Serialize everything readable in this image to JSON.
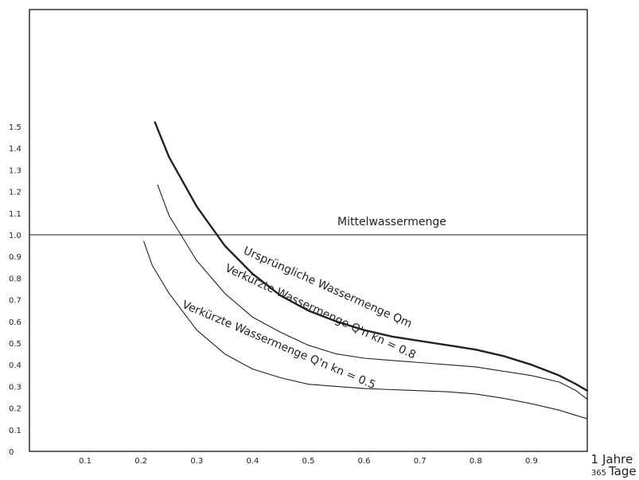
{
  "chart_data": {
    "type": "line",
    "xlabel": "Jahre",
    "xlabel_secondary": "Tage",
    "x_end_tick_jahre": "1",
    "x_end_tick_tage": "365",
    "ylabel": "",
    "xlim": [
      0,
      1.0
    ],
    "ylim": [
      0,
      1.5
    ],
    "grid": false,
    "x_ticks": [
      {
        "value": 0.1,
        "label": "0.1"
      },
      {
        "value": 0.2,
        "label": "0.2"
      },
      {
        "value": 0.3,
        "label": "0.3"
      },
      {
        "value": 0.4,
        "label": "0.4"
      },
      {
        "value": 0.5,
        "label": "0.5"
      },
      {
        "value": 0.6,
        "label": "0.6"
      },
      {
        "value": 0.7,
        "label": "0.7"
      },
      {
        "value": 0.8,
        "label": "0.8"
      },
      {
        "value": 0.9,
        "label": "0.9"
      }
    ],
    "y_ticks": [
      {
        "value": 0,
        "label": "0"
      },
      {
        "value": 0.1,
        "label": "0.1"
      },
      {
        "value": 0.2,
        "label": "0.2"
      },
      {
        "value": 0.3,
        "label": "0.3"
      },
      {
        "value": 0.4,
        "label": "0.4"
      },
      {
        "value": 0.5,
        "label": "0.5"
      },
      {
        "value": 0.6,
        "label": "0.6"
      },
      {
        "value": 0.7,
        "label": "0.7"
      },
      {
        "value": 0.8,
        "label": "0.8"
      },
      {
        "value": 0.9,
        "label": "0.9"
      },
      {
        "value": 1.0,
        "label": "1.0"
      },
      {
        "value": 1.1,
        "label": "1.1"
      },
      {
        "value": 1.2,
        "label": "1.2"
      },
      {
        "value": 1.3,
        "label": "1.3"
      },
      {
        "value": 1.4,
        "label": "1.4"
      },
      {
        "value": 1.5,
        "label": "1.5"
      }
    ],
    "series": [
      {
        "name": "Mittelwassermenge",
        "x": [
          0,
          1.0
        ],
        "y": [
          1.0,
          1.0
        ]
      },
      {
        "name": "Ursprüngliche Wassermenge Qm",
        "x": [
          0.225,
          0.25,
          0.3,
          0.35,
          0.4,
          0.45,
          0.5,
          0.55,
          0.6,
          0.65,
          0.7,
          0.75,
          0.8,
          0.85,
          0.9,
          0.95,
          0.98,
          1.0
        ],
        "y": [
          1.52,
          1.36,
          1.13,
          0.95,
          0.82,
          0.72,
          0.65,
          0.6,
          0.56,
          0.53,
          0.51,
          0.49,
          0.47,
          0.44,
          0.4,
          0.35,
          0.31,
          0.28
        ]
      },
      {
        "name": "Verkürzte Wassermenge Q'n kn = 0.8",
        "x": [
          0.23,
          0.25,
          0.3,
          0.35,
          0.4,
          0.45,
          0.5,
          0.55,
          0.6,
          0.65,
          0.7,
          0.75,
          0.8,
          0.85,
          0.9,
          0.95,
          0.98,
          1.0
        ],
        "y": [
          1.23,
          1.09,
          0.88,
          0.73,
          0.62,
          0.55,
          0.49,
          0.45,
          0.43,
          0.42,
          0.41,
          0.4,
          0.39,
          0.37,
          0.35,
          0.32,
          0.28,
          0.24
        ]
      },
      {
        "name": "Verkürzte Wassermenge Q'n kn = 0.5",
        "x": [
          0.205,
          0.22,
          0.25,
          0.3,
          0.35,
          0.4,
          0.45,
          0.5,
          0.55,
          0.6,
          0.65,
          0.7,
          0.75,
          0.8,
          0.85,
          0.9,
          0.95,
          1.0
        ],
        "y": [
          0.97,
          0.86,
          0.73,
          0.56,
          0.45,
          0.38,
          0.34,
          0.31,
          0.3,
          0.29,
          0.285,
          0.28,
          0.275,
          0.265,
          0.245,
          0.22,
          0.19,
          0.15
        ]
      }
    ],
    "annotations": {
      "mittel": "Mittelwassermenge",
      "q_m": "Ursprüngliche Wassermenge Qm",
      "q_n_08": "Verkürzte Wassermenge Q'n kn = 0.8",
      "q_n_05": "Verkürzte Wassermenge Q'n kn = 0.5"
    },
    "colors": {
      "ink": "#222222",
      "background": "#ffffff"
    }
  }
}
